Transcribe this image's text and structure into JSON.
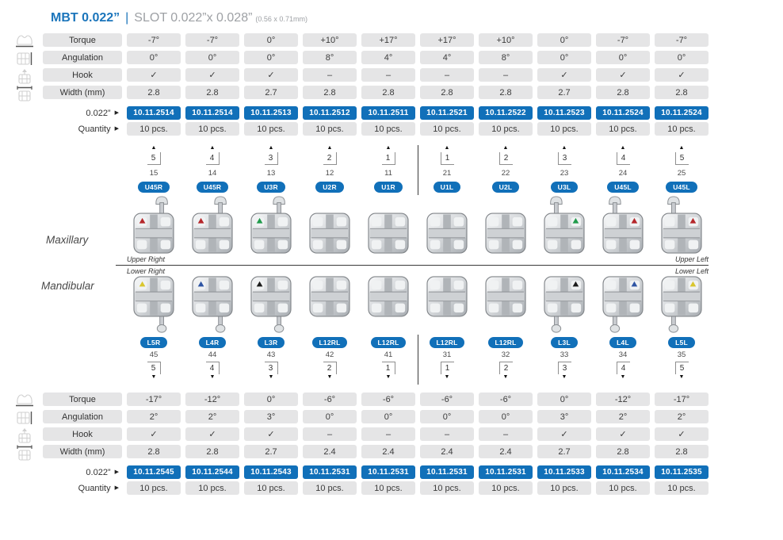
{
  "header": {
    "title_primary": "MBT 0.022”",
    "divider": "|",
    "title_secondary": "SLOT 0.022”x 0.028”",
    "title_note": "(0.56 x 0.71mm)"
  },
  "row_labels": [
    "Torque",
    "Angulation",
    "Hook",
    "Width (mm)"
  ],
  "size_row_label": "0.022”",
  "quantity_row_label": "Quantity",
  "icons": {
    "tri_right": "▶",
    "tri_up": "▲",
    "tri_down": "▼",
    "row_icons": [
      "torque-icon",
      "angulation-icon",
      "hook-icon",
      "width-icon"
    ]
  },
  "maxillary": {
    "torque": [
      "-7°",
      "-7°",
      "0°",
      "+10°",
      "+17°",
      "+17°",
      "+10°",
      "0°",
      "-7°",
      "-7°"
    ],
    "angulation": [
      "0°",
      "0°",
      "0°",
      "8°",
      "4°",
      "4°",
      "8°",
      "0°",
      "0°",
      "0°"
    ],
    "hook": [
      "✓",
      "✓",
      "✓",
      "–",
      "–",
      "–",
      "–",
      "✓",
      "✓",
      "✓"
    ],
    "width": [
      "2.8",
      "2.8",
      "2.7",
      "2.8",
      "2.8",
      "2.8",
      "2.8",
      "2.7",
      "2.8",
      "2.8"
    ],
    "codes": [
      "10.11.2514",
      "10.11.2514",
      "10.11.2513",
      "10.11.2512",
      "10.11.2511",
      "10.11.2521",
      "10.11.2522",
      "10.11.2523",
      "10.11.2524",
      "10.11.2524"
    ],
    "quantities": [
      "10 pcs.",
      "10 pcs.",
      "10 pcs.",
      "10 pcs.",
      "10 pcs.",
      "10 pcs.",
      "10 pcs.",
      "10 pcs.",
      "10 pcs.",
      "10 pcs."
    ]
  },
  "mandibular": {
    "torque": [
      "-17°",
      "-12°",
      "0°",
      "-6°",
      "-6°",
      "-6°",
      "-6°",
      "0°",
      "-12°",
      "-17°"
    ],
    "angulation": [
      "2°",
      "2°",
      "3°",
      "0°",
      "0°",
      "0°",
      "0°",
      "3°",
      "2°",
      "2°"
    ],
    "hook": [
      "✓",
      "✓",
      "✓",
      "–",
      "–",
      "–",
      "–",
      "✓",
      "✓",
      "✓"
    ],
    "width": [
      "2.8",
      "2.8",
      "2.7",
      "2.4",
      "2.4",
      "2.4",
      "2.4",
      "2.7",
      "2.8",
      "2.8"
    ],
    "codes": [
      "10.11.2545",
      "10.11.2544",
      "10.11.2543",
      "10.11.2531",
      "10.11.2531",
      "10.11.2531",
      "10.11.2531",
      "10.11.2533",
      "10.11.2534",
      "10.11.2535"
    ],
    "quantities": [
      "10 pcs.",
      "10 pcs.",
      "10 pcs.",
      "10 pcs.",
      "10 pcs.",
      "10 pcs.",
      "10 pcs.",
      "10 pcs.",
      "10 pcs.",
      "10 pcs."
    ]
  },
  "chart": {
    "side_labels": {
      "maxillary": "Maxillary",
      "mandibular": "Mandibular"
    },
    "quadrants": {
      "upper_right": "Upper Right",
      "upper_left": "Upper Left",
      "lower_right": "Lower Right",
      "lower_left": "Lower Left"
    },
    "upper": {
      "palmer": [
        "5",
        "4",
        "3",
        "2",
        "1",
        "1",
        "2",
        "3",
        "4",
        "5"
      ],
      "fdi": [
        "15",
        "14",
        "13",
        "12",
        "11",
        "21",
        "22",
        "23",
        "24",
        "25"
      ],
      "ids": [
        "U45R",
        "U45R",
        "U3R",
        "U2R",
        "U1R",
        "U1L",
        "U2L",
        "U3L",
        "U45L",
        "U45L"
      ],
      "hooks": [
        true,
        true,
        true,
        false,
        false,
        false,
        false,
        true,
        true,
        true
      ],
      "dots": [
        "red",
        "red",
        "green",
        null,
        null,
        null,
        null,
        "green",
        "red",
        "red"
      ]
    },
    "lower": {
      "palmer": [
        "5",
        "4",
        "3",
        "2",
        "1",
        "1",
        "2",
        "3",
        "4",
        "5"
      ],
      "fdi": [
        "45",
        "44",
        "43",
        "42",
        "41",
        "31",
        "32",
        "33",
        "34",
        "35"
      ],
      "ids": [
        "L5R",
        "L4R",
        "L3R",
        "L12RL",
        "L12RL",
        "L12RL",
        "L12RL",
        "L3L",
        "L4L",
        "L5L"
      ],
      "hooks": [
        true,
        true,
        true,
        false,
        false,
        false,
        false,
        true,
        true,
        true
      ],
      "dots": [
        "yellow",
        "blue",
        "black",
        null,
        null,
        null,
        null,
        "black",
        "blue",
        "yellow"
      ]
    }
  },
  "colors": {
    "brand_blue": "#1b75bb",
    "badge_blue": "#1170b9",
    "cell_gray": "#e5e5e6",
    "dot_palette": {
      "red": "#b5272b",
      "green": "#209b4b",
      "yellow": "#d9c62e",
      "blue": "#2f55a4",
      "black": "#1c1c1c"
    }
  }
}
